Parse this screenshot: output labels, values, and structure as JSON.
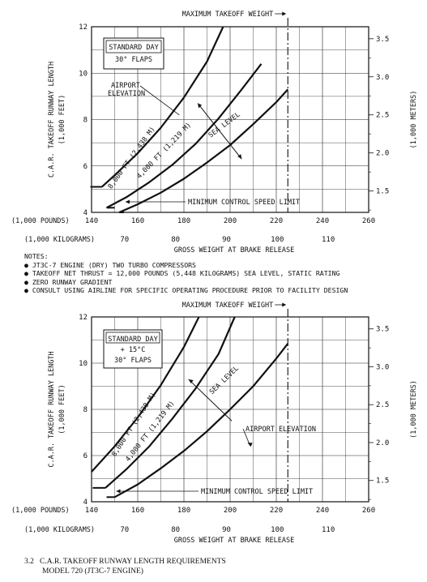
{
  "chart_data": [
    {
      "type": "line",
      "xlabel": "GROSS WEIGHT AT BRAKE RELEASE",
      "x_unit_primary": "(1,000 POUNDS)",
      "x_unit_secondary": "(1,000 KILOGRAMS)",
      "ylabel": "C.A.R. TAKEOFF RUNWAY LENGTH",
      "ylabel_unit": "(1,000 FEET)",
      "y2label": "(1,000 METERS)",
      "xlim": [
        140,
        260
      ],
      "ylim": [
        4,
        12
      ],
      "x_ticks": [
        140,
        160,
        180,
        200,
        220,
        240,
        260
      ],
      "y_ticks": [
        4,
        6,
        8,
        10,
        12
      ],
      "kg_ticks": [
        70,
        80,
        90,
        100,
        110
      ],
      "m_ticks": [
        1.5,
        2.0,
        2.5,
        3.0,
        3.5
      ],
      "box_lines": [
        "STANDARD DAY",
        "30° FLAPS"
      ],
      "max_takeoff_label": "MAXIMUM TAKEOFF WEIGHT",
      "max_takeoff_weight": 225,
      "min_control_label": "MINIMUM CONTROL SPEED LIMIT",
      "elevation_label": "AIRPORT\nELEVATION",
      "series": [
        {
          "name": "8,000 FT (2,438 M)",
          "x": [
            144.5,
            150,
            160,
            170,
            180,
            190,
            197
          ],
          "y": [
            5.1,
            5.6,
            6.55,
            7.65,
            8.95,
            10.5,
            12.0
          ]
        },
        {
          "name": "4,000 FT (1,219 M)",
          "x": [
            146.5,
            155,
            165,
            175,
            185,
            195,
            205,
            213.5
          ],
          "y": [
            4.2,
            4.65,
            5.3,
            6.05,
            6.95,
            8.05,
            9.3,
            10.4
          ]
        },
        {
          "name": "SEA LEVEL",
          "x": [
            152,
            160,
            170,
            180,
            190,
            200,
            210,
            220,
            225
          ],
          "y": [
            4.0,
            4.35,
            4.85,
            5.45,
            6.15,
            6.9,
            7.8,
            8.75,
            9.3
          ]
        }
      ],
      "min_control_segments": [
        [
          [
            139.5,
            5.1
          ],
          [
            144.5,
            5.1
          ]
        ],
        [
          [
            146.5,
            4.2
          ],
          [
            150,
            4.2
          ]
        ],
        [
          [
            152,
            4.0
          ],
          [
            154,
            4.0
          ]
        ]
      ]
    },
    {
      "type": "line",
      "xlabel": "GROSS WEIGHT AT BRAKE RELEASE",
      "x_unit_primary": "(1,000 POUNDS)",
      "x_unit_secondary": "(1,000 KILOGRAMS)",
      "ylabel": "C.A.R. TAKEOFF RUNWAY LENGTH",
      "ylabel_unit": "(1,000 FEET)",
      "y2label": "(1,000 METERS)",
      "xlim": [
        140,
        260
      ],
      "ylim": [
        4,
        12
      ],
      "x_ticks": [
        140,
        160,
        180,
        200,
        220,
        240,
        260
      ],
      "y_ticks": [
        4,
        6,
        8,
        10,
        12
      ],
      "kg_ticks": [
        70,
        80,
        90,
        100,
        110
      ],
      "m_ticks": [
        1.5,
        2.0,
        2.5,
        3.0,
        3.5
      ],
      "box_lines": [
        "STANDARD DAY",
        "+ 15°C",
        "30° FLAPS"
      ],
      "max_takeoff_label": "MAXIMUM TAKEOFF WEIGHT",
      "max_takeoff_weight": 225,
      "min_control_label": "MINIMUM CONTROL SPEED LIMIT",
      "elevation_label": "AIRPORT ELEVATION",
      "series": [
        {
          "name": "8,000 FT (2,438 M)",
          "x": [
            140,
            150,
            160,
            170,
            180,
            186.5
          ],
          "y": [
            5.3,
            6.4,
            7.65,
            9.05,
            10.7,
            12.0
          ]
        },
        {
          "name": "4,000 FT (1,219 M)",
          "x": [
            146,
            155,
            165,
            175,
            185,
            195,
            202
          ],
          "y": [
            4.6,
            5.4,
            6.4,
            7.6,
            8.9,
            10.4,
            12.0
          ]
        },
        {
          "name": "SEA LEVEL",
          "x": [
            150,
            160,
            170,
            180,
            190,
            200,
            210,
            220,
            225
          ],
          "y": [
            4.2,
            4.75,
            5.45,
            6.2,
            7.05,
            8.0,
            9.0,
            10.2,
            10.85
          ]
        }
      ],
      "min_control_segments": [
        [
          [
            140.5,
            4.6
          ],
          [
            146,
            4.6
          ]
        ],
        [
          [
            146.5,
            4.2
          ],
          [
            150,
            4.2
          ]
        ]
      ]
    }
  ],
  "notes": {
    "heading": "NOTES:",
    "items": [
      "JT3C-7 ENGINE (DRY) TWO TURBO COMPRESSORS",
      "TAKEOFF NET THRUST = 12,000  POUNDS (5,448 KILOGRAMS) SEA LEVEL, STATIC RATING",
      "ZERO RUNWAY GRADIENT",
      "CONSULT USING AIRLINE FOR SPECIFIC OPERATING PROCEDURE PRIOR TO FACILITY DESIGN"
    ],
    "bullet": "●"
  },
  "caption": {
    "number": "3.2",
    "title": "C.A.R. TAKEOFF RUNWAY LENGTH REQUIREMENTS",
    "subtitle": "MODEL 720 (JT3C-7 ENGINE)"
  },
  "colors": {
    "ink": "#111111",
    "grid": "#222222",
    "paper": "#ffffff"
  }
}
